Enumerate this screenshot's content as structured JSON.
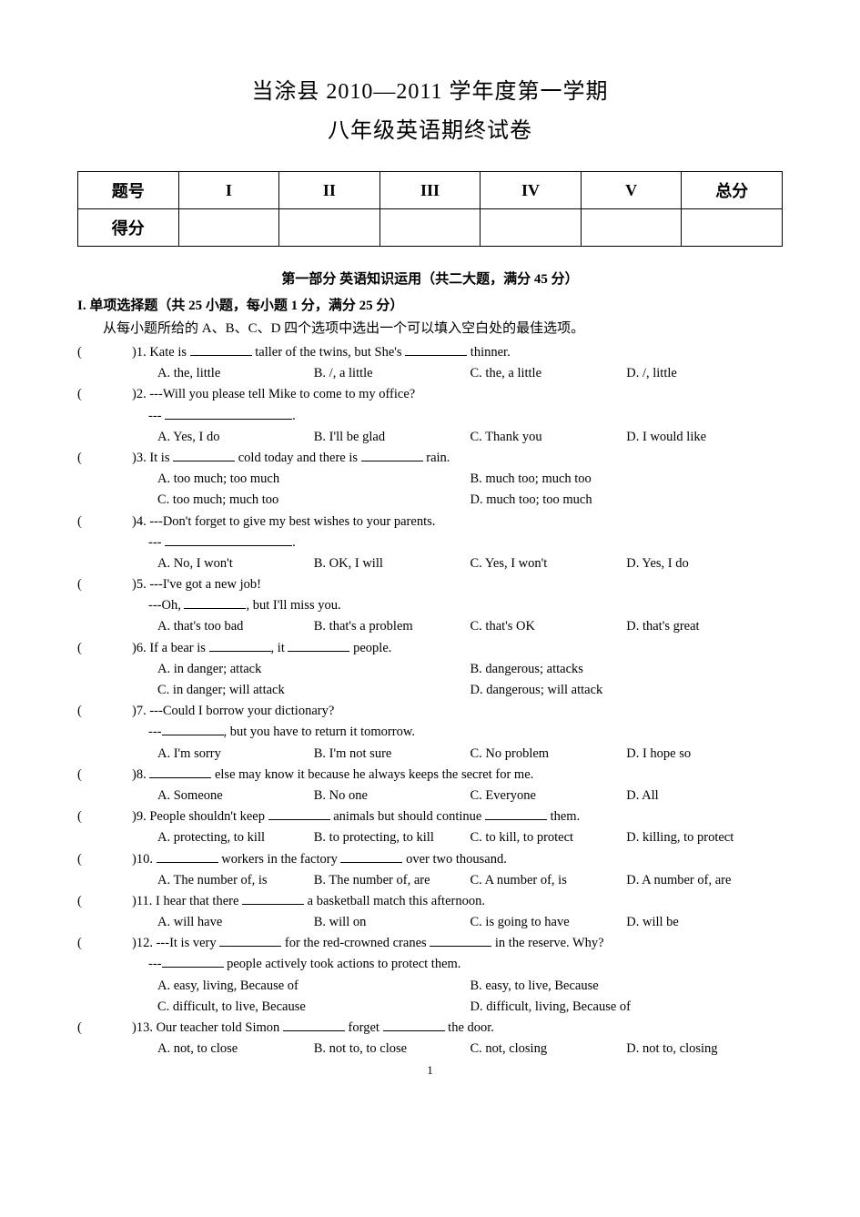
{
  "title": "当涂县 2010—2011 学年度第一学期",
  "subtitle": "八年级英语期终试卷",
  "score_table": {
    "headers": [
      "题号",
      "I",
      "II",
      "III",
      "IV",
      "V",
      "总分"
    ],
    "row_label": "得分"
  },
  "section1_title": "第一部分  英语知识运用（共二大题，满分 45 分）",
  "part1_title": "I.  单项选择题（共 25 小题，每小题 1 分，满分 25 分）",
  "instruction": "从每小题所给的 A、B、C、D 四个选项中选出一个可以填入空白处的最佳选项。",
  "questions": [
    {
      "n": "1",
      "stem_pre": "Kate is ",
      "stem_mid": " taller of the twins, but She's ",
      "stem_post": " thinner.",
      "opts": [
        "A. the, little",
        "B. /, a little",
        "C. the, a little",
        "D. /, little"
      ],
      "layout": "four"
    },
    {
      "n": "2",
      "stem": "---Will you please tell Mike to come to my office?",
      "sub": "--- ",
      "sub_blank": true,
      "opts": [
        "A. Yes, I do",
        "B. I'll be glad",
        "C. Thank you",
        "D. I would like"
      ],
      "layout": "four"
    },
    {
      "n": "3",
      "stem_pre": "It is ",
      "stem_mid": " cold today and there is ",
      "stem_post": " rain.",
      "opts": [
        "A. too much; too much",
        "B. much too; much too",
        "C. too much; much too",
        "D. much too; too much"
      ],
      "layout": "two"
    },
    {
      "n": "4",
      "stem": "---Don't forget to give my best wishes to your parents.",
      "sub": "--- ",
      "sub_blank": true,
      "opts": [
        "A. No, I won't",
        "B. OK, I will",
        "C. Yes, I won't",
        "D. Yes, I do"
      ],
      "layout": "four"
    },
    {
      "n": "5",
      "stem": "---I've got a new job!",
      "sub_pre": "---Oh, ",
      "sub_post": ", but I'll miss you.",
      "opts": [
        "A. that's too bad",
        "B. that's a problem",
        "C. that's OK",
        "D. that's great"
      ],
      "layout": "four"
    },
    {
      "n": "6",
      "stem_pre": "If a bear is ",
      "stem_mid": ", it ",
      "stem_post": " people.",
      "opts": [
        "A. in danger; attack",
        "B. dangerous; attacks",
        "C. in danger; will attack",
        "D. dangerous; will attack"
      ],
      "layout": "two"
    },
    {
      "n": "7",
      "stem": "---Could I borrow your dictionary?",
      "sub_pre": "---",
      "sub_post": ", but you have to return it tomorrow.",
      "opts": [
        "A. I'm sorry",
        "B. I'm not sure",
        "C. No problem",
        "D. I hope so"
      ],
      "layout": "four"
    },
    {
      "n": "8",
      "stem_pre": "",
      "stem_post": " else may know it because he always keeps the secret for me.",
      "single_blank": true,
      "opts": [
        "A. Someone",
        "B. No one",
        "C. Everyone",
        "D. All"
      ],
      "layout": "four"
    },
    {
      "n": "9",
      "stem_pre": "People shouldn't keep ",
      "stem_mid": " animals but should continue ",
      "stem_post": " them.",
      "opts": [
        "A. protecting, to kill",
        "B. to protecting, to kill",
        "C. to kill, to protect",
        "D. killing, to protect"
      ],
      "layout": "four"
    },
    {
      "n": "10",
      "stem_pre": "",
      "stem_mid": " workers in the factory ",
      "stem_post": " over two thousand.",
      "lead_blank": true,
      "opts": [
        "A. The number of, is",
        "B. The number of, are",
        "C. A number of, is",
        "D. A number of, are"
      ],
      "layout": "four"
    },
    {
      "n": "11",
      "stem_pre": "I hear that there ",
      "stem_post": " a basketball match this afternoon.",
      "single_blank": true,
      "opts": [
        "A. will have",
        "B. will on",
        "C. is going to have",
        "D. will be"
      ],
      "layout": "four"
    },
    {
      "n": "12",
      "stem_pre": "---It is very ",
      "stem_mid": " for the red-crowned cranes ",
      "stem_post": " in the reserve. Why?",
      "sub_pre": "---",
      "sub_post": " people actively took actions to protect them.",
      "opts": [
        "A. easy, living, Because of",
        "B. easy, to live, Because",
        "C. difficult, to live, Because",
        "D. difficult, living, Because of"
      ],
      "layout": "two"
    },
    {
      "n": "13",
      "stem_pre": "Our teacher told Simon ",
      "stem_mid": " forget ",
      "stem_post": " the door.",
      "opts": [
        "A. not, to close",
        "B. not to, to close",
        "C. not, closing",
        "D. not to, closing"
      ],
      "layout": "four"
    }
  ],
  "page_number": "1",
  "colors": {
    "text": "#000000",
    "background": "#ffffff",
    "border": "#000000"
  },
  "fonts": {
    "title_size": 24,
    "body_size": 14.5,
    "section_size": 15
  }
}
